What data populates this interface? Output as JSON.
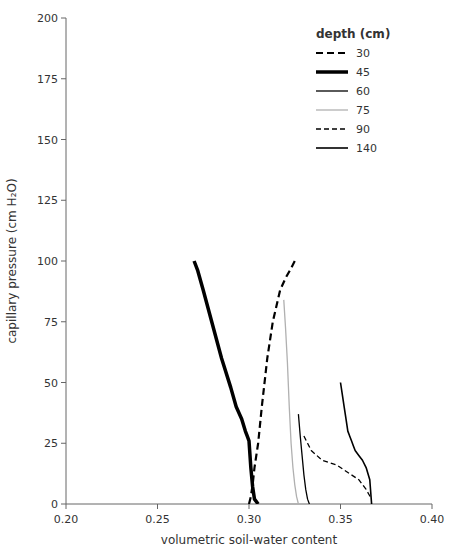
{
  "chart_data": {
    "type": "line",
    "x_label": "volumetric soil-water content",
    "y_label": "capillary pressure (cm H₂O)",
    "xlim": [
      0.2,
      0.4
    ],
    "ylim": [
      0,
      200
    ],
    "xticks": [
      {
        "value": 0.2,
        "label": "0.20"
      },
      {
        "value": 0.25,
        "label": "0.25"
      },
      {
        "value": 0.3,
        "label": "0.30"
      },
      {
        "value": 0.35,
        "label": "0.35"
      },
      {
        "value": 0.4,
        "label": "0.40"
      }
    ],
    "yticks": [
      0,
      25,
      50,
      75,
      100,
      125,
      150,
      175,
      200
    ],
    "grid": false,
    "legend": "upper right",
    "legend_title": "depth (cm)",
    "series": [
      {
        "name": "30",
        "color": "#000000",
        "line_style": "dashed",
        "x": [
          0.3,
          0.301,
          0.302,
          0.303,
          0.305,
          0.307,
          0.31,
          0.313,
          0.317,
          0.32,
          0.323,
          0.325
        ],
        "values": [
          0,
          3,
          8,
          15,
          25,
          40,
          60,
          75,
          88,
          93,
          97,
          100
        ]
      },
      {
        "name": "45",
        "color": "#000000",
        "line_style": "solid",
        "x": [
          0.27,
          0.272,
          0.275,
          0.28,
          0.285,
          0.29,
          0.293,
          0.296,
          0.298,
          0.299,
          0.3,
          0.301,
          0.302,
          0.303,
          0.305
        ],
        "values": [
          100,
          96,
          88,
          74,
          60,
          48,
          40,
          35,
          30,
          28,
          26,
          15,
          7,
          2,
          0
        ]
      },
      {
        "name": "60",
        "color": "#000000",
        "line_style": "solid",
        "x": [
          0.327,
          0.328,
          0.329,
          0.33,
          0.331,
          0.332,
          0.333
        ],
        "values": [
          37,
          28,
          20,
          12,
          6,
          2,
          0
        ]
      },
      {
        "name": "75",
        "color": "#b0b0b0",
        "line_style": "solid",
        "x": [
          0.319,
          0.32,
          0.321,
          0.322,
          0.323,
          0.324,
          0.325,
          0.326,
          0.327
        ],
        "values": [
          84,
          72,
          58,
          40,
          25,
          15,
          8,
          3,
          0
        ]
      },
      {
        "name": "90",
        "color": "#000000",
        "line_style": "dashed",
        "x": [
          0.33,
          0.332,
          0.334,
          0.337,
          0.34,
          0.344,
          0.348,
          0.352,
          0.356,
          0.36,
          0.364,
          0.367
        ],
        "values": [
          28,
          25,
          22,
          20,
          18,
          17,
          16,
          14,
          12,
          10,
          6,
          2
        ]
      },
      {
        "name": "140",
        "color": "#000000",
        "line_style": "solid",
        "x": [
          0.35,
          0.351,
          0.352,
          0.353,
          0.354,
          0.355,
          0.356,
          0.357,
          0.358,
          0.36,
          0.362,
          0.364,
          0.366,
          0.367
        ],
        "values": [
          50,
          45,
          40,
          35,
          30,
          28,
          26,
          24,
          22,
          20,
          18,
          15,
          10,
          0
        ]
      }
    ]
  }
}
